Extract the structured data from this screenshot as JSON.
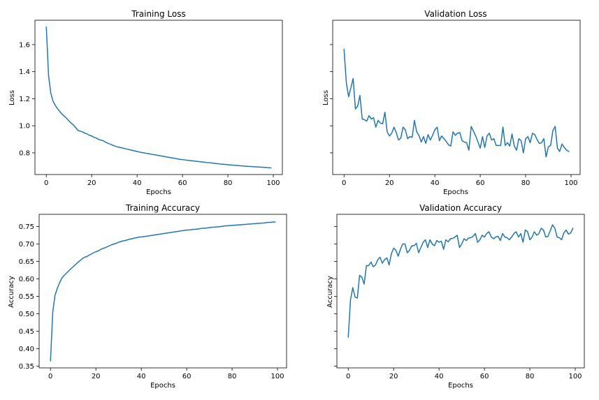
{
  "chart_data": [
    {
      "type": "line",
      "title": "Training Loss",
      "xlabel": "Epochs",
      "ylabel": "Loss",
      "xlim": [
        -5,
        104
      ],
      "ylim": [
        0.64,
        1.78
      ],
      "xticks": [
        0,
        20,
        40,
        60,
        80,
        100
      ],
      "yticks": [
        0.8,
        1.0,
        1.2,
        1.4,
        1.6
      ],
      "ytick_decimals": 1,
      "grid": false,
      "series": [
        {
          "values": [
            1.73,
            1.37,
            1.24,
            1.18,
            1.15,
            1.125,
            1.105,
            1.085,
            1.07,
            1.055,
            1.035,
            1.02,
            1.005,
            0.985,
            0.965,
            0.96,
            0.955,
            0.945,
            0.94,
            0.93,
            0.925,
            0.915,
            0.91,
            0.9,
            0.895,
            0.89,
            0.88,
            0.872,
            0.866,
            0.858,
            0.852,
            0.846,
            0.842,
            0.838,
            0.834,
            0.83,
            0.826,
            0.822,
            0.818,
            0.814,
            0.81,
            0.806,
            0.803,
            0.8,
            0.797,
            0.794,
            0.791,
            0.788,
            0.785,
            0.782,
            0.779,
            0.776,
            0.773,
            0.77,
            0.767,
            0.764,
            0.761,
            0.758,
            0.755,
            0.752,
            0.75,
            0.748,
            0.746,
            0.744,
            0.742,
            0.74,
            0.738,
            0.736,
            0.734,
            0.732,
            0.73,
            0.728,
            0.727,
            0.725,
            0.723,
            0.721,
            0.719,
            0.717,
            0.716,
            0.714,
            0.712,
            0.711,
            0.71,
            0.708,
            0.707,
            0.705,
            0.704,
            0.703,
            0.701,
            0.7,
            0.699,
            0.698,
            0.697,
            0.696,
            0.695,
            0.694,
            0.693,
            0.692,
            0.69,
            0.689
          ]
        }
      ]
    },
    {
      "type": "line",
      "title": "Validation Loss",
      "xlabel": "Epochs",
      "ylabel": "Loss",
      "xlim": [
        -5,
        104
      ],
      "ylim": [
        0.64,
        1.78
      ],
      "xticks": [
        0,
        20,
        40,
        60,
        80,
        100
      ],
      "yticks": [
        0.8,
        1.0,
        1.2,
        1.4,
        1.6
      ],
      "show_ytick_labels": false,
      "grid": false,
      "series": [
        {
          "values": [
            1.565,
            1.32,
            1.215,
            1.28,
            1.35,
            1.125,
            1.145,
            1.225,
            1.05,
            1.045,
            1.035,
            1.075,
            1.05,
            1.06,
            0.99,
            1.04,
            1.02,
            1.015,
            1.1,
            0.955,
            0.925,
            0.945,
            0.99,
            0.95,
            0.895,
            0.91,
            0.99,
            0.97,
            0.905,
            0.92,
            0.915,
            1.04,
            0.955,
            0.93,
            0.88,
            0.92,
            0.87,
            0.935,
            0.895,
            0.93,
            0.97,
            0.99,
            0.89,
            0.925,
            0.905,
            0.885,
            0.86,
            0.85,
            0.955,
            0.93,
            0.945,
            0.95,
            0.89,
            0.88,
            0.875,
            0.82,
            0.995,
            0.96,
            0.925,
            0.88,
            0.835,
            0.92,
            0.84,
            0.925,
            0.945,
            0.895,
            0.905,
            0.855,
            0.855,
            0.855,
            0.99,
            0.855,
            0.875,
            0.85,
            0.94,
            0.85,
            0.82,
            0.905,
            0.89,
            0.8,
            0.905,
            0.92,
            0.875,
            0.945,
            0.935,
            0.9,
            0.87,
            0.875,
            0.905,
            0.77,
            0.845,
            0.855,
            0.965,
            0.995,
            0.835,
            0.81,
            0.865,
            0.84,
            0.82,
            0.81
          ]
        }
      ]
    },
    {
      "type": "line",
      "title": "Training Accuracy",
      "xlabel": "Epochs",
      "ylabel": "Accuracy",
      "xlim": [
        -5,
        104
      ],
      "ylim": [
        0.345,
        0.785
      ],
      "xticks": [
        0,
        20,
        40,
        60,
        80,
        100
      ],
      "yticks": [
        0.35,
        0.4,
        0.45,
        0.5,
        0.55,
        0.6,
        0.65,
        0.7,
        0.75
      ],
      "ytick_decimals": 2,
      "grid": false,
      "series": [
        {
          "values": [
            0.365,
            0.505,
            0.553,
            0.573,
            0.589,
            0.602,
            0.61,
            0.616,
            0.623,
            0.629,
            0.635,
            0.641,
            0.647,
            0.652,
            0.658,
            0.662,
            0.664,
            0.668,
            0.671,
            0.675,
            0.678,
            0.68,
            0.684,
            0.687,
            0.689,
            0.692,
            0.695,
            0.698,
            0.7,
            0.702,
            0.705,
            0.707,
            0.709,
            0.71,
            0.712,
            0.714,
            0.715,
            0.717,
            0.718,
            0.72,
            0.72,
            0.721,
            0.722,
            0.723,
            0.724,
            0.725,
            0.726,
            0.727,
            0.728,
            0.729,
            0.73,
            0.731,
            0.732,
            0.733,
            0.734,
            0.735,
            0.736,
            0.737,
            0.738,
            0.739,
            0.74,
            0.74,
            0.741,
            0.742,
            0.742,
            0.743,
            0.744,
            0.745,
            0.745,
            0.746,
            0.747,
            0.748,
            0.748,
            0.749,
            0.749,
            0.75,
            0.751,
            0.752,
            0.752,
            0.753,
            0.753,
            0.754,
            0.754,
            0.755,
            0.755,
            0.756,
            0.756,
            0.757,
            0.757,
            0.758,
            0.758,
            0.759,
            0.759,
            0.76,
            0.76,
            0.761,
            0.762,
            0.762,
            0.763,
            0.763
          ]
        }
      ]
    },
    {
      "type": "line",
      "title": "Validation Accuracy",
      "xlabel": "Epochs",
      "ylabel": "Accuracy",
      "xlim": [
        -5,
        104
      ],
      "ylim": [
        0.345,
        0.785
      ],
      "xticks": [
        0,
        20,
        40,
        60,
        80,
        100
      ],
      "yticks": [
        0.35,
        0.4,
        0.45,
        0.5,
        0.55,
        0.6,
        0.65,
        0.7,
        0.75
      ],
      "show_ytick_labels": false,
      "grid": false,
      "series": [
        {
          "values": [
            0.433,
            0.54,
            0.575,
            0.548,
            0.545,
            0.61,
            0.605,
            0.585,
            0.638,
            0.638,
            0.648,
            0.635,
            0.64,
            0.655,
            0.662,
            0.645,
            0.655,
            0.66,
            0.64,
            0.672,
            0.688,
            0.682,
            0.665,
            0.685,
            0.7,
            0.7,
            0.675,
            0.682,
            0.695,
            0.695,
            0.702,
            0.675,
            0.69,
            0.705,
            0.712,
            0.69,
            0.712,
            0.7,
            0.695,
            0.71,
            0.705,
            0.708,
            0.685,
            0.712,
            0.706,
            0.715,
            0.716,
            0.72,
            0.725,
            0.69,
            0.7,
            0.715,
            0.71,
            0.717,
            0.718,
            0.722,
            0.73,
            0.705,
            0.712,
            0.725,
            0.72,
            0.73,
            0.735,
            0.72,
            0.715,
            0.72,
            0.722,
            0.71,
            0.73,
            0.72,
            0.718,
            0.712,
            0.72,
            0.73,
            0.735,
            0.72,
            0.73,
            0.705,
            0.74,
            0.735,
            0.712,
            0.72,
            0.735,
            0.725,
            0.73,
            0.745,
            0.74,
            0.72,
            0.722,
            0.738,
            0.755,
            0.745,
            0.72,
            0.718,
            0.712,
            0.732,
            0.74,
            0.728,
            0.732,
            0.745
          ]
        }
      ]
    }
  ]
}
